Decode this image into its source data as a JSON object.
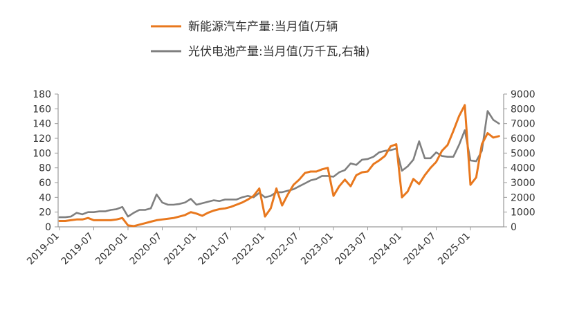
{
  "chart_data": {
    "type": "line",
    "dual_axis": true,
    "legend": {
      "placement": "top",
      "entries": [
        {
          "label": "新能源汽车产量:当月值(万辆",
          "color": "#E8781E",
          "axis": "left"
        },
        {
          "label": "光伏电池产量:当月值(万千瓦,右轴)",
          "color": "#7F7F7F",
          "axis": "right"
        }
      ]
    },
    "y_left": {
      "ticks": [
        "0",
        "20",
        "40",
        "60",
        "80",
        "100",
        "120",
        "140",
        "160",
        "180"
      ],
      "ylim": [
        0,
        180
      ]
    },
    "y_right": {
      "ticks": [
        "0",
        "1000",
        "2000",
        "3000",
        "4000",
        "5000",
        "6000",
        "7000",
        "8000",
        "9000"
      ],
      "ylim": [
        0,
        9000
      ]
    },
    "x_ticks": [
      "2019-01",
      "2019-07",
      "2020-01",
      "2020-07",
      "2021-01",
      "2021-07",
      "2022-01",
      "2022-07",
      "2023-01",
      "2023-07",
      "2024-01",
      "2024-07",
      "2025-01"
    ],
    "x_start": "2019-01",
    "series": [
      {
        "name": "新能源汽车产量:当月值(万辆",
        "axis": "left",
        "color": "#E8781E",
        "x": [
          "2019-01",
          "2019-02",
          "2019-03",
          "2019-04",
          "2019-05",
          "2019-06",
          "2019-07",
          "2019-08",
          "2019-09",
          "2019-10",
          "2019-11",
          "2019-12",
          "2020-01",
          "2020-02",
          "2020-03",
          "2020-04",
          "2020-05",
          "2020-06",
          "2020-07",
          "2020-08",
          "2020-09",
          "2020-10",
          "2020-11",
          "2020-12",
          "2021-01",
          "2021-02",
          "2021-03",
          "2021-04",
          "2021-05",
          "2021-06",
          "2021-07",
          "2021-08",
          "2021-09",
          "2021-10",
          "2021-11",
          "2021-12",
          "2022-01",
          "2022-02",
          "2022-03",
          "2022-04",
          "2022-05",
          "2022-06",
          "2022-07",
          "2022-08",
          "2022-09",
          "2022-10",
          "2022-11",
          "2022-12",
          "2023-01",
          "2023-02",
          "2023-03",
          "2023-04",
          "2023-05",
          "2023-06",
          "2023-07",
          "2023-08",
          "2023-09",
          "2023-10",
          "2023-11",
          "2023-12",
          "2024-01",
          "2024-02",
          "2024-03",
          "2024-04",
          "2024-05",
          "2024-06",
          "2024-07",
          "2024-08",
          "2024-09",
          "2024-10",
          "2024-11",
          "2024-12",
          "2025-01",
          "2025-02",
          "2025-03",
          "2025-04",
          "2025-05",
          "2025-06"
        ],
        "values": [
          8,
          8,
          9,
          10,
          10,
          12,
          9,
          9,
          9,
          9,
          10,
          12,
          2,
          1,
          3,
          5,
          7,
          9,
          10,
          11,
          12,
          14,
          16,
          20,
          18,
          15,
          19,
          22,
          24,
          25,
          27,
          30,
          33,
          37,
          42,
          52,
          14,
          25,
          52,
          29,
          44,
          57,
          64,
          73,
          75,
          75,
          78,
          80,
          42,
          55,
          64,
          55,
          70,
          74,
          75,
          85,
          90,
          96,
          109,
          112,
          40,
          48,
          65,
          58,
          70,
          80,
          88,
          103,
          111,
          130,
          150,
          165,
          57,
          67,
          112,
          127,
          121,
          123
        ]
      },
      {
        "name": "光伏电池产量:当月值(万千瓦,右轴)",
        "axis": "right",
        "color": "#7F7F7F",
        "x": [
          "2019-01",
          "2019-02",
          "2019-03",
          "2019-04",
          "2019-05",
          "2019-06",
          "2019-07",
          "2019-08",
          "2019-09",
          "2019-10",
          "2019-11",
          "2019-12",
          "2020-01",
          "2020-02",
          "2020-03",
          "2020-04",
          "2020-05",
          "2020-06",
          "2020-07",
          "2020-08",
          "2020-09",
          "2020-10",
          "2020-11",
          "2020-12",
          "2021-01",
          "2021-02",
          "2021-03",
          "2021-04",
          "2021-05",
          "2021-06",
          "2021-07",
          "2021-08",
          "2021-09",
          "2021-10",
          "2021-11",
          "2021-12",
          "2022-01",
          "2022-02",
          "2022-03",
          "2022-04",
          "2022-05",
          "2022-06",
          "2022-07",
          "2022-08",
          "2022-09",
          "2022-10",
          "2022-11",
          "2022-12",
          "2023-01",
          "2023-02",
          "2023-03",
          "2023-04",
          "2023-05",
          "2023-06",
          "2023-07",
          "2023-08",
          "2023-09",
          "2023-10",
          "2023-11",
          "2023-12",
          "2024-01",
          "2024-02",
          "2024-03",
          "2024-04",
          "2024-05",
          "2024-06",
          "2024-07",
          "2024-08",
          "2024-09",
          "2024-10",
          "2024-11",
          "2024-12",
          "2025-01",
          "2025-02",
          "2025-03",
          "2025-04",
          "2025-05",
          "2025-06"
        ],
        "values": [
          650,
          650,
          700,
          950,
          850,
          1000,
          1000,
          1050,
          1050,
          1150,
          1200,
          1350,
          700,
          950,
          1150,
          1150,
          1250,
          2200,
          1650,
          1500,
          1500,
          1550,
          1650,
          1900,
          1500,
          1600,
          1700,
          1800,
          1750,
          1850,
          1850,
          1850,
          2000,
          2100,
          2000,
          2300,
          2000,
          2100,
          2350,
          2350,
          2450,
          2550,
          2750,
          2950,
          3150,
          3250,
          3450,
          3450,
          3400,
          3700,
          3850,
          4300,
          4200,
          4550,
          4600,
          4750,
          5050,
          5150,
          5200,
          5300,
          3800,
          4100,
          4550,
          5800,
          4650,
          4650,
          5050,
          4800,
          4750,
          4750,
          5550,
          6550,
          4500,
          4450,
          5150,
          7850,
          7250,
          7000
        ]
      }
    ]
  }
}
